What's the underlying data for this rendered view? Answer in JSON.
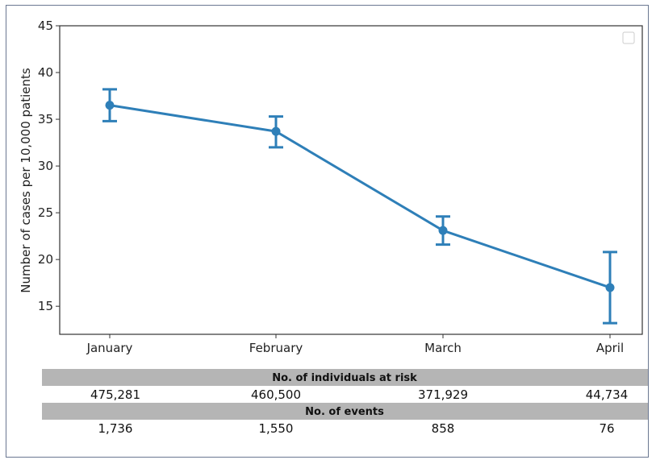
{
  "chart_data": {
    "type": "line",
    "categories": [
      "January",
      "February",
      "March",
      "April"
    ],
    "series": [
      {
        "values": [
          36.5,
          33.7,
          23.1,
          17.0
        ],
        "error_low": [
          34.8,
          32.0,
          21.6,
          13.2
        ],
        "error_high": [
          38.2,
          35.3,
          24.6,
          20.8
        ],
        "color": "#2e7fb8"
      }
    ],
    "title": "",
    "xlabel": "",
    "ylabel": "Number of cases per 10,000 patients",
    "ylim": [
      12,
      45
    ],
    "yticks": [
      15,
      20,
      25,
      30,
      35,
      40,
      45
    ],
    "grid": false,
    "legend": "top-right",
    "legend_entries": []
  },
  "risk_table": {
    "rows": [
      {
        "title": "No. of individuals at risk",
        "values": [
          "475,281",
          "460,500",
          "371,929",
          "44,734"
        ]
      },
      {
        "title": "No. of events",
        "values": [
          "1,736",
          "1,550",
          "858",
          "76"
        ]
      }
    ]
  }
}
